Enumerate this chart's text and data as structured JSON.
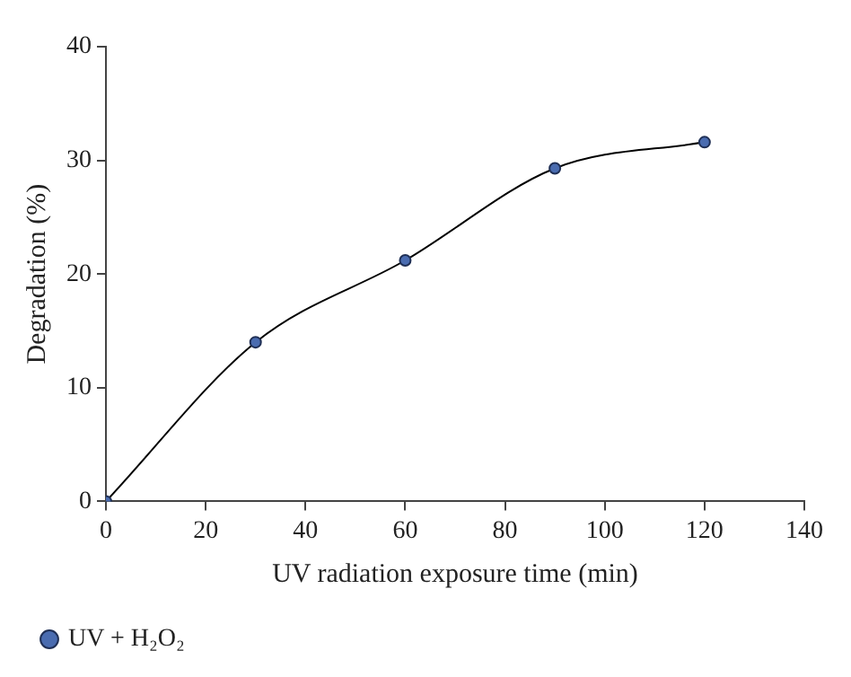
{
  "chart_data": {
    "type": "line",
    "xlabel": "UV radiation exposure time (min)",
    "ylabel": "Degradation (%)",
    "x": [
      0,
      30,
      60,
      90,
      120
    ],
    "series": [
      {
        "name": "UV + H₂O₂",
        "color": "#4a6cb0",
        "values": [
          0,
          14,
          21.2,
          29.3,
          31.6
        ]
      }
    ],
    "xlim": [
      0,
      140
    ],
    "xticks": [
      0,
      20,
      40,
      60,
      80,
      100,
      120,
      140
    ],
    "ylim": [
      0,
      40
    ],
    "yticks": [
      0,
      10,
      20,
      30,
      40
    ],
    "grid": false,
    "legend": "bottom left",
    "marker": "circle",
    "line_style": "solid"
  }
}
